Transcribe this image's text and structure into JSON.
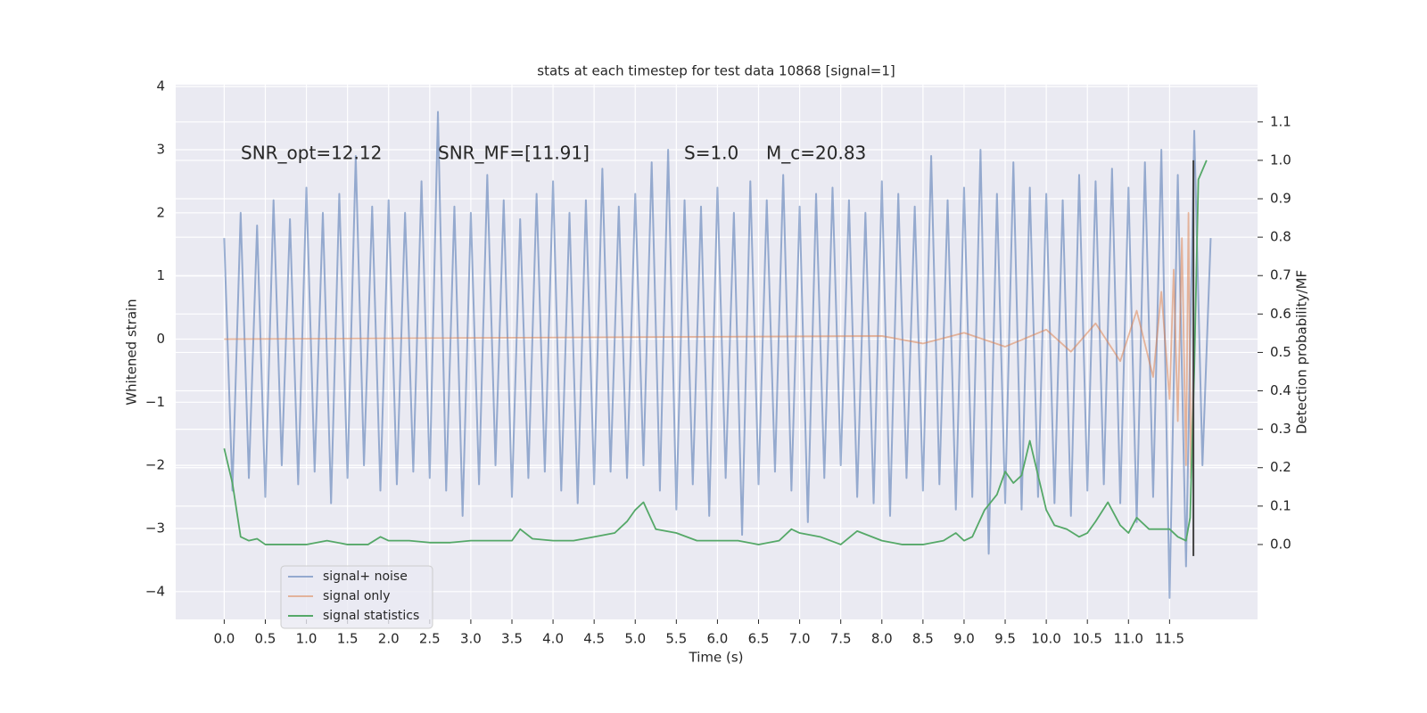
{
  "chart_data": {
    "type": "line",
    "title": "stats at each timestep for test data 10868 [signal=1]",
    "xlabel": "Time (s)",
    "ylabel": "Whitened strain",
    "y2label": "Detection probability/MF",
    "annotations": [
      "SNR_opt=12.12",
      "SNR_MF=[11.91]",
      "S=1.0",
      "M_c=20.83"
    ],
    "xlim": [
      -0.59,
      12.57
    ],
    "ylim": [
      -4.44,
      4.03
    ],
    "y2lim": [
      -0.195,
      1.197
    ],
    "xticks": [
      {
        "value": 0,
        "label": "0.0"
      },
      0.5,
      {
        "value": 1,
        "label": "1.0"
      },
      1.5,
      {
        "value": 2,
        "label": "2.0"
      },
      2.5,
      {
        "value": 3,
        "label": "3.0"
      },
      3.5,
      {
        "value": 4,
        "label": "4.0"
      },
      4.5,
      {
        "value": 5,
        "label": "5.0"
      },
      5.5,
      {
        "value": 6,
        "label": "6.0"
      },
      6.5,
      {
        "value": 7,
        "label": "7.0"
      },
      7.5,
      {
        "value": 8,
        "label": "8.0"
      },
      8.5,
      {
        "value": 9,
        "label": "9.0"
      },
      9.5,
      {
        "value": 10,
        "label": "10.0"
      },
      10.5,
      {
        "value": 11,
        "label": "11.0"
      },
      11.5
    ],
    "yticks": [
      {
        "value": -4,
        "label": "−4"
      },
      {
        "value": -3,
        "label": "−3"
      },
      {
        "value": -2,
        "label": "−2"
      },
      {
        "value": -1,
        "label": "−1"
      },
      0,
      1,
      2,
      3,
      4
    ],
    "y2ticks": [
      {
        "value": 0,
        "label": "0.0"
      },
      0.1,
      0.2,
      0.3,
      0.4,
      0.5,
      0.6,
      0.7,
      0.8,
      0.9,
      {
        "value": 1,
        "label": "1.0"
      },
      1.1
    ],
    "grid": true,
    "legend": "lower left",
    "series": [
      {
        "name": "signal+ noise",
        "color": "#4c72b0",
        "x": [
          0,
          0.1,
          0.2,
          0.3,
          0.4,
          0.5,
          0.6,
          0.7,
          0.8,
          0.9,
          1,
          1.1,
          1.2,
          1.3,
          1.4,
          1.5,
          1.6,
          1.7,
          1.8,
          1.9,
          2,
          2.1,
          2.2,
          2.3,
          2.4,
          2.5,
          2.6,
          2.7,
          2.8,
          2.9,
          3,
          3.1,
          3.2,
          3.3,
          3.4,
          3.5,
          3.6,
          3.7,
          3.8,
          3.9,
          4,
          4.1,
          4.2,
          4.3,
          4.4,
          4.5,
          4.6,
          4.7,
          4.8,
          4.9,
          5,
          5.1,
          5.2,
          5.3,
          5.4,
          5.5,
          5.6,
          5.7,
          5.8,
          5.9,
          6,
          6.1,
          6.2,
          6.3,
          6.4,
          6.5,
          6.6,
          6.7,
          6.8,
          6.9,
          7,
          7.1,
          7.2,
          7.3,
          7.4,
          7.5,
          7.6,
          7.7,
          7.8,
          7.9,
          8,
          8.1,
          8.2,
          8.3,
          8.4,
          8.5,
          8.6,
          8.7,
          8.8,
          8.9,
          9,
          9.1,
          9.2,
          9.3,
          9.4,
          9.5,
          9.6,
          9.7,
          9.8,
          9.9,
          10,
          10.1,
          10.2,
          10.3,
          10.4,
          10.5,
          10.6,
          10.7,
          10.8,
          10.9,
          11,
          11.1,
          11.2,
          11.3,
          11.4,
          11.5,
          11.6,
          11.7,
          11.8,
          11.9,
          12
        ],
        "values": [
          1.6,
          -2.4,
          2.0,
          -2.2,
          1.8,
          -2.5,
          2.2,
          -2.0,
          1.9,
          -2.3,
          2.4,
          -2.1,
          2.0,
          -2.6,
          2.3,
          -2.2,
          2.9,
          -2.0,
          2.1,
          -2.4,
          2.2,
          -2.3,
          2.0,
          -2.1,
          2.5,
          -2.2,
          3.6,
          -2.4,
          2.1,
          -2.8,
          2.0,
          -2.3,
          2.6,
          -2.0,
          2.2,
          -2.5,
          1.9,
          -2.2,
          2.3,
          -2.1,
          2.5,
          -2.4,
          2.0,
          -2.6,
          2.2,
          -2.3,
          2.7,
          -2.1,
          2.1,
          -2.2,
          2.3,
          -2.0,
          2.8,
          -2.4,
          3.0,
          -2.7,
          2.2,
          -2.3,
          2.1,
          -2.8,
          2.4,
          -2.2,
          2.0,
          -3.1,
          2.5,
          -2.3,
          2.2,
          -2.1,
          2.6,
          -2.4,
          2.1,
          -2.9,
          2.3,
          -2.2,
          2.4,
          -2.0,
          2.2,
          -2.5,
          2.0,
          -2.6,
          2.5,
          -2.8,
          2.3,
          -2.2,
          2.1,
          -2.4,
          2.9,
          -2.3,
          2.2,
          -2.7,
          2.4,
          -2.5,
          3.0,
          -3.4,
          2.3,
          -2.6,
          2.8,
          -2.7,
          2.4,
          -2.5,
          2.3,
          -2.6,
          2.2,
          -2.8,
          2.6,
          -2.4,
          2.5,
          -2.3,
          2.7,
          -2.6,
          2.4,
          -2.9,
          2.8,
          -2.5,
          3.0,
          -4.1,
          2.6,
          -3.6,
          3.3,
          -2.0,
          1.6
        ]
      },
      {
        "name": "signal only",
        "color": "#dd8452",
        "x": [
          0,
          8.0,
          8.5,
          9.0,
          9.5,
          10.0,
          10.3,
          10.6,
          10.9,
          11.1,
          11.3,
          11.4,
          11.5,
          11.55,
          11.6,
          11.65,
          11.7,
          11.73,
          11.76,
          11.8
        ],
        "values": [
          0,
          0.05,
          -0.07,
          0.1,
          -0.12,
          0.15,
          -0.2,
          0.25,
          -0.35,
          0.45,
          -0.6,
          0.75,
          -0.95,
          1.1,
          -1.3,
          1.6,
          -2.0,
          2.0,
          -2.2,
          0
        ]
      },
      {
        "name": "signal statistics",
        "color": "#55a868",
        "axis": "y2",
        "x": [
          0,
          0.1,
          0.2,
          0.3,
          0.4,
          0.5,
          0.75,
          1.0,
          1.25,
          1.5,
          1.75,
          1.9,
          2.0,
          2.25,
          2.5,
          2.75,
          3.0,
          3.25,
          3.5,
          3.6,
          3.75,
          4.0,
          4.25,
          4.5,
          4.75,
          4.9,
          5.0,
          5.1,
          5.25,
          5.5,
          5.75,
          6.0,
          6.25,
          6.5,
          6.75,
          6.9,
          7.0,
          7.25,
          7.5,
          7.7,
          8.0,
          8.25,
          8.5,
          8.75,
          8.9,
          9.0,
          9.1,
          9.25,
          9.4,
          9.5,
          9.6,
          9.7,
          9.8,
          9.9,
          10.0,
          10.1,
          10.25,
          10.4,
          10.5,
          10.6,
          10.75,
          10.9,
          11.0,
          11.1,
          11.25,
          11.4,
          11.5,
          11.6,
          11.7,
          11.75,
          11.8,
          11.85,
          11.95
        ],
        "values": [
          0.25,
          0.16,
          0.02,
          0.01,
          0.015,
          0.0,
          0.0,
          0.0,
          0.01,
          0.0,
          0.0,
          0.02,
          0.01,
          0.01,
          0.005,
          0.005,
          0.01,
          0.01,
          0.01,
          0.04,
          0.015,
          0.01,
          0.01,
          0.02,
          0.03,
          0.06,
          0.09,
          0.11,
          0.04,
          0.03,
          0.01,
          0.01,
          0.01,
          0.0,
          0.01,
          0.04,
          0.03,
          0.02,
          0.0,
          0.035,
          0.01,
          0.0,
          0.0,
          0.01,
          0.03,
          0.01,
          0.02,
          0.09,
          0.13,
          0.19,
          0.16,
          0.18,
          0.27,
          0.18,
          0.09,
          0.05,
          0.04,
          0.02,
          0.03,
          0.06,
          0.11,
          0.05,
          0.03,
          0.07,
          0.04,
          0.04,
          0.04,
          0.02,
          0.01,
          0.07,
          0.45,
          0.95,
          1.0
        ]
      }
    ],
    "vlines": [
      {
        "x": 11.79,
        "ymin": -0.03,
        "ymax": 1.0,
        "color": "#404040",
        "axis": "y2"
      }
    ]
  }
}
